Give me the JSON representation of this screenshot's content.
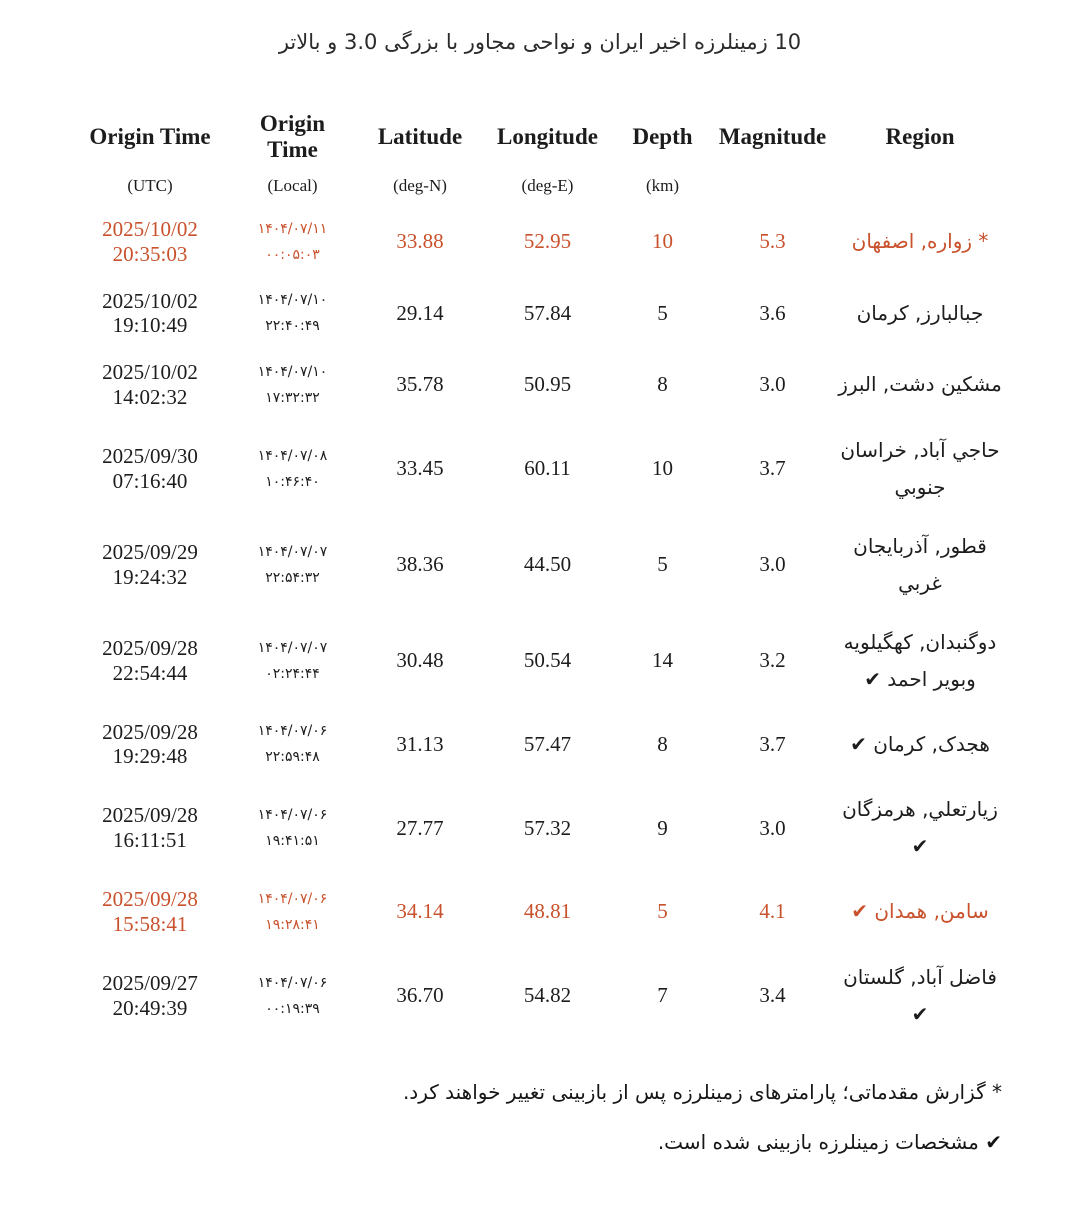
{
  "title": "10 زمینلرزه اخیر ایران و نواحی مجاور با بزرگی 3.0 و بالاتر",
  "colors": {
    "highlight": "#c9512c",
    "text_primary": "#1c1c1c"
  },
  "columns": [
    {
      "label": "Origin Time",
      "sub": "(UTC)"
    },
    {
      "label": "Origin Time",
      "sub": "(Local)"
    },
    {
      "label": "Latitude",
      "sub": "(deg-N)"
    },
    {
      "label": "Longitude",
      "sub": "(deg-E)"
    },
    {
      "label": "Depth",
      "sub": "(km)"
    },
    {
      "label": "Magnitude",
      "sub": ""
    },
    {
      "label": "Region",
      "sub": ""
    }
  ],
  "rows": [
    {
      "utc_date": "2025/10/02",
      "utc_time": "20:35:03",
      "local_date": "۱۴۰۴/۰۷/۱۱",
      "local_time": "۰۰:۰۵:۰۳",
      "lat": "33.88",
      "lon": "52.95",
      "depth": "10",
      "mag": "5.3",
      "region": "* زواره, اصفهان",
      "highlight": true
    },
    {
      "utc_date": "2025/10/02",
      "utc_time": "19:10:49",
      "local_date": "۱۴۰۴/۰۷/۱۰",
      "local_time": "۲۲:۴۰:۴۹",
      "lat": "29.14",
      "lon": "57.84",
      "depth": "5",
      "mag": "3.6",
      "region": "جبالبارز, کرمان",
      "highlight": false
    },
    {
      "utc_date": "2025/10/02",
      "utc_time": "14:02:32",
      "local_date": "۱۴۰۴/۰۷/۱۰",
      "local_time": "۱۷:۳۲:۳۲",
      "lat": "35.78",
      "lon": "50.95",
      "depth": "8",
      "mag": "3.0",
      "region": "مشکین دشت, البرز",
      "highlight": false
    },
    {
      "utc_date": "2025/09/30",
      "utc_time": "07:16:40",
      "local_date": "۱۴۰۴/۰۷/۰۸",
      "local_time": "۱۰:۴۶:۴۰",
      "lat": "33.45",
      "lon": "60.11",
      "depth": "10",
      "mag": "3.7",
      "region": "حاجي آباد, خراسان جنوبي",
      "highlight": false
    },
    {
      "utc_date": "2025/09/29",
      "utc_time": "19:24:32",
      "local_date": "۱۴۰۴/۰۷/۰۷",
      "local_time": "۲۲:۵۴:۳۲",
      "lat": "38.36",
      "lon": "44.50",
      "depth": "5",
      "mag": "3.0",
      "region": "قطور, آذربايجان غربي",
      "highlight": false
    },
    {
      "utc_date": "2025/09/28",
      "utc_time": "22:54:44",
      "local_date": "۱۴۰۴/۰۷/۰۷",
      "local_time": "۰۲:۲۴:۴۴",
      "lat": "30.48",
      "lon": "50.54",
      "depth": "14",
      "mag": "3.2",
      "region": "دوگنبدان, کهگيلويه وبوير احمد ✔",
      "highlight": false
    },
    {
      "utc_date": "2025/09/28",
      "utc_time": "19:29:48",
      "local_date": "۱۴۰۴/۰۷/۰۶",
      "local_time": "۲۲:۵۹:۴۸",
      "lat": "31.13",
      "lon": "57.47",
      "depth": "8",
      "mag": "3.7",
      "region": "هجدک, کرمان ✔",
      "highlight": false
    },
    {
      "utc_date": "2025/09/28",
      "utc_time": "16:11:51",
      "local_date": "۱۴۰۴/۰۷/۰۶",
      "local_time": "۱۹:۴۱:۵۱",
      "lat": "27.77",
      "lon": "57.32",
      "depth": "9",
      "mag": "3.0",
      "region": "زيارتعلي, هرمزگان ✔",
      "highlight": false
    },
    {
      "utc_date": "2025/09/28",
      "utc_time": "15:58:41",
      "local_date": "۱۴۰۴/۰۷/۰۶",
      "local_time": "۱۹:۲۸:۴۱",
      "lat": "34.14",
      "lon": "48.81",
      "depth": "5",
      "mag": "4.1",
      "region": "سامن, همدان ✔",
      "highlight": true
    },
    {
      "utc_date": "2025/09/27",
      "utc_time": "20:49:39",
      "local_date": "۱۴۰۴/۰۷/۰۶",
      "local_time": "۰۰:۱۹:۳۹",
      "lat": "36.70",
      "lon": "54.82",
      "depth": "7",
      "mag": "3.4",
      "region": "فاضل آباد, گلستان ✔",
      "highlight": false
    }
  ],
  "footnotes": [
    "* گزارش مقدماتی؛ پارامترهای زمینلرزه پس از بازبینی تغییر خواهند کرد.",
    "✔ مشخصات زمینلرزه بازبینی شده است."
  ]
}
